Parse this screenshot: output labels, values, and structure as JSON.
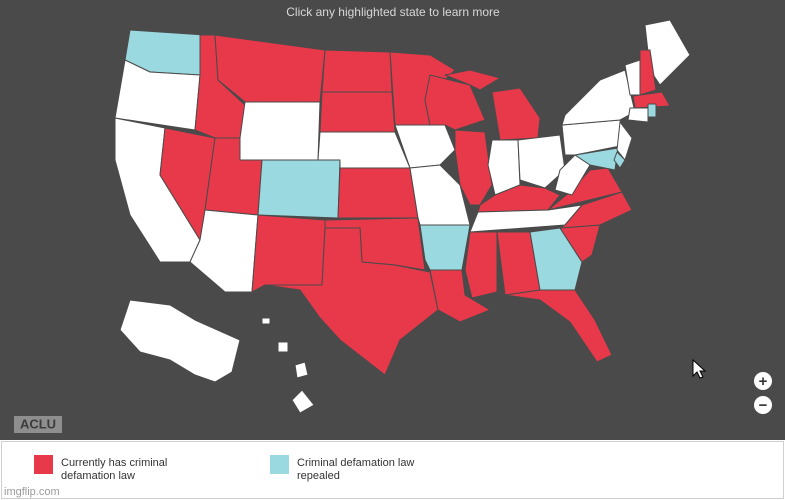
{
  "header": {
    "instruction": "Click any highlighted state to learn more"
  },
  "logo": "ACLU",
  "legend": [
    {
      "label_lines": [
        "Currently has criminal",
        "defamation law"
      ],
      "color": "#e8394a"
    },
    {
      "label_lines": [
        "Criminal defamation law",
        "repealed"
      ],
      "color": "#9ad9e0"
    }
  ],
  "controls": {
    "zoom_in": "+",
    "zoom_out": "−"
  },
  "watermark": "imgflip.com"
}
